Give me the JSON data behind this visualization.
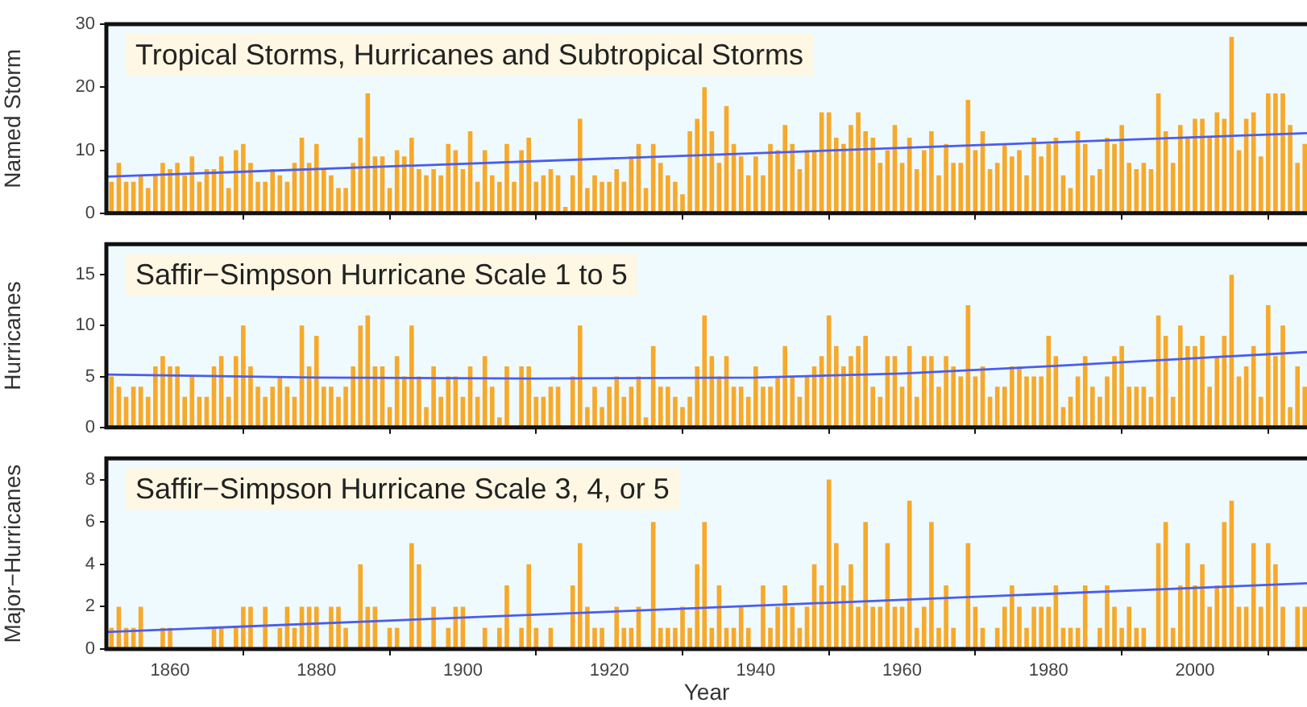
{
  "chart_data": [
    {
      "type": "bar",
      "title": "Tropical Storms, Hurricanes and Subtropical Storms",
      "ylabel": "Named Storm",
      "x": [
        1852,
        1853,
        1854,
        1855,
        1856,
        1857,
        1858,
        1859,
        1860,
        1861,
        1862,
        1863,
        1864,
        1865,
        1866,
        1867,
        1868,
        1869,
        1870,
        1871,
        1872,
        1873,
        1874,
        1875,
        1876,
        1877,
        1878,
        1879,
        1880,
        1881,
        1882,
        1883,
        1884,
        1885,
        1886,
        1887,
        1888,
        1889,
        1890,
        1891,
        1892,
        1893,
        1894,
        1895,
        1896,
        1897,
        1898,
        1899,
        1900,
        1901,
        1902,
        1903,
        1904,
        1905,
        1906,
        1907,
        1908,
        1909,
        1910,
        1911,
        1912,
        1913,
        1914,
        1915,
        1916,
        1917,
        1918,
        1919,
        1920,
        1921,
        1922,
        1923,
        1924,
        1925,
        1926,
        1927,
        1928,
        1929,
        1930,
        1931,
        1932,
        1933,
        1934,
        1935,
        1936,
        1937,
        1938,
        1939,
        1940,
        1941,
        1942,
        1943,
        1944,
        1945,
        1946,
        1947,
        1948,
        1949,
        1950,
        1951,
        1952,
        1953,
        1954,
        1955,
        1956,
        1957,
        1958,
        1959,
        1960,
        1961,
        1962,
        1963,
        1964,
        1965,
        1966,
        1967,
        1968,
        1969,
        1970,
        1971,
        1972,
        1973,
        1974,
        1975,
        1976,
        1977,
        1978,
        1979,
        1980,
        1981,
        1982,
        1983,
        1984,
        1985,
        1986,
        1987,
        1988,
        1989,
        1990,
        1991,
        1992,
        1993,
        1994,
        1995,
        1996,
        1997,
        1998,
        1999,
        2000,
        2001,
        2002,
        2003,
        2004,
        2005,
        2006,
        2007,
        2008,
        2009,
        2010,
        2011,
        2012,
        2013,
        2014,
        2015
      ],
      "series": [
        {
          "color": "#f7a92a",
          "values": [
            5,
            8,
            5,
            5,
            6,
            4,
            6,
            8,
            7,
            8,
            6,
            9,
            5,
            7,
            7,
            9,
            4,
            10,
            11,
            8,
            5,
            5,
            7,
            6,
            5,
            8,
            12,
            8,
            11,
            7,
            6,
            4,
            4,
            8,
            12,
            19,
            9,
            9,
            4,
            10,
            9,
            12,
            7,
            6,
            7,
            6,
            11,
            10,
            7,
            13,
            5,
            10,
            6,
            5,
            11,
            5,
            10,
            12,
            5,
            6,
            7,
            6,
            1,
            6,
            15,
            4,
            6,
            5,
            5,
            7,
            5,
            9,
            11,
            4,
            11,
            8,
            6,
            5,
            3,
            13,
            15,
            20,
            13,
            8,
            17,
            11,
            9,
            6,
            9,
            6,
            11,
            10,
            14,
            11,
            7,
            10,
            10,
            16,
            16,
            12,
            11,
            14,
            16,
            13,
            12,
            8,
            10,
            14,
            8,
            12,
            7,
            10,
            13,
            6,
            11,
            8,
            8,
            18,
            10,
            13,
            7,
            8,
            11,
            9,
            10,
            6,
            12,
            9,
            11,
            12,
            6,
            4,
            13,
            11,
            6,
            7,
            12,
            11,
            14,
            8,
            7,
            8,
            7,
            19,
            13,
            8,
            14,
            12,
            15,
            15,
            12,
            16,
            15,
            28,
            10,
            15,
            16,
            9,
            19,
            19,
            19,
            14,
            8,
            11
          ]
        },
        {
          "type": "line",
          "color": "#4a5cf0",
          "x": [
            1851.3,
            2015.3
          ],
          "values": [
            5.8,
            12.7
          ]
        }
      ],
      "xlim": [
        1851.3,
        2015.3
      ],
      "xticks": [
        1860,
        1880,
        1900,
        1920,
        1940,
        1960,
        1980,
        2000
      ],
      "ylim": [
        0,
        30
      ],
      "yticks": [
        0,
        10,
        20,
        30
      ],
      "tick_labels": "y"
    },
    {
      "type": "bar",
      "title": "Saffir−Simpson Hurricane Scale 1 to 5",
      "ylabel": "Hurricanes",
      "x": [
        1852,
        1853,
        1854,
        1855,
        1856,
        1857,
        1858,
        1859,
        1860,
        1861,
        1862,
        1863,
        1864,
        1865,
        1866,
        1867,
        1868,
        1869,
        1870,
        1871,
        1872,
        1873,
        1874,
        1875,
        1876,
        1877,
        1878,
        1879,
        1880,
        1881,
        1882,
        1883,
        1884,
        1885,
        1886,
        1887,
        1888,
        1889,
        1890,
        1891,
        1892,
        1893,
        1894,
        1895,
        1896,
        1897,
        1898,
        1899,
        1900,
        1901,
        1902,
        1903,
        1904,
        1905,
        1906,
        1907,
        1908,
        1909,
        1910,
        1911,
        1912,
        1913,
        1914,
        1915,
        1916,
        1917,
        1918,
        1919,
        1920,
        1921,
        1922,
        1923,
        1924,
        1925,
        1926,
        1927,
        1928,
        1929,
        1930,
        1931,
        1932,
        1933,
        1934,
        1935,
        1936,
        1937,
        1938,
        1939,
        1940,
        1941,
        1942,
        1943,
        1944,
        1945,
        1946,
        1947,
        1948,
        1949,
        1950,
        1951,
        1952,
        1953,
        1954,
        1955,
        1956,
        1957,
        1958,
        1959,
        1960,
        1961,
        1962,
        1963,
        1964,
        1965,
        1966,
        1967,
        1968,
        1969,
        1970,
        1971,
        1972,
        1973,
        1974,
        1975,
        1976,
        1977,
        1978,
        1979,
        1980,
        1981,
        1982,
        1983,
        1984,
        1985,
        1986,
        1987,
        1988,
        1989,
        1990,
        1991,
        1992,
        1993,
        1994,
        1995,
        1996,
        1997,
        1998,
        1999,
        2000,
        2001,
        2002,
        2003,
        2004,
        2005,
        2006,
        2007,
        2008,
        2009,
        2010,
        2011,
        2012,
        2013,
        2014,
        2015
      ],
      "series": [
        {
          "color": "#f7a92a",
          "values": [
            5,
            4,
            3,
            4,
            4,
            3,
            6,
            7,
            6,
            6,
            3,
            5,
            3,
            3,
            6,
            7,
            3,
            7,
            10,
            6,
            4,
            3,
            4,
            5,
            4,
            3,
            10,
            6,
            9,
            4,
            4,
            3,
            4,
            6,
            10,
            11,
            6,
            6,
            2,
            7,
            5,
            10,
            5,
            2,
            6,
            3,
            5,
            5,
            3,
            6,
            3,
            7,
            4,
            1,
            6,
            0,
            6,
            6,
            3,
            3,
            4,
            4,
            0,
            5,
            10,
            2,
            4,
            2,
            4,
            5,
            3,
            4,
            5,
            1,
            8,
            4,
            4,
            3,
            2,
            3,
            6,
            11,
            7,
            5,
            7,
            4,
            4,
            3,
            6,
            4,
            4,
            5,
            8,
            5,
            3,
            5,
            6,
            7,
            11,
            8,
            6,
            7,
            8,
            9,
            4,
            3,
            7,
            7,
            4,
            8,
            3,
            7,
            7,
            4,
            7,
            6,
            5,
            12,
            5,
            6,
            3,
            4,
            4,
            6,
            6,
            5,
            5,
            5,
            9,
            7,
            2,
            3,
            5,
            7,
            4,
            3,
            5,
            7,
            8,
            4,
            4,
            4,
            3,
            11,
            9,
            3,
            10,
            8,
            8,
            9,
            4,
            7,
            9,
            15,
            5,
            6,
            8,
            3,
            12,
            7,
            10,
            2,
            6,
            4
          ]
        },
        {
          "type": "line",
          "color": "#4a5cf0",
          "x": [
            1851.3,
            1880,
            1910,
            1940,
            1960,
            1980,
            2000,
            2015.3
          ],
          "values": [
            5.2,
            4.9,
            4.8,
            4.9,
            5.3,
            6.0,
            6.8,
            7.4
          ]
        }
      ],
      "xlim": [
        1851.3,
        2015.3
      ],
      "xticks": [
        1860,
        1880,
        1900,
        1920,
        1940,
        1960,
        1980,
        2000
      ],
      "ylim": [
        0,
        18
      ],
      "yticks": [
        0,
        5,
        10,
        15
      ],
      "tick_labels": "y"
    },
    {
      "type": "bar",
      "title": "Saffir−Simpson Hurricane Scale 3, 4, or 5",
      "ylabel": "Major−Hurricanes",
      "xlabel": "Year",
      "x": [
        1852,
        1853,
        1854,
        1855,
        1856,
        1857,
        1858,
        1859,
        1860,
        1861,
        1862,
        1863,
        1864,
        1865,
        1866,
        1867,
        1868,
        1869,
        1870,
        1871,
        1872,
        1873,
        1874,
        1875,
        1876,
        1877,
        1878,
        1879,
        1880,
        1881,
        1882,
        1883,
        1884,
        1885,
        1886,
        1887,
        1888,
        1889,
        1890,
        1891,
        1892,
        1893,
        1894,
        1895,
        1896,
        1897,
        1898,
        1899,
        1900,
        1901,
        1902,
        1903,
        1904,
        1905,
        1906,
        1907,
        1908,
        1909,
        1910,
        1911,
        1912,
        1913,
        1914,
        1915,
        1916,
        1917,
        1918,
        1919,
        1920,
        1921,
        1922,
        1923,
        1924,
        1925,
        1926,
        1927,
        1928,
        1929,
        1930,
        1931,
        1932,
        1933,
        1934,
        1935,
        1936,
        1937,
        1938,
        1939,
        1940,
        1941,
        1942,
        1943,
        1944,
        1945,
        1946,
        1947,
        1948,
        1949,
        1950,
        1951,
        1952,
        1953,
        1954,
        1955,
        1956,
        1957,
        1958,
        1959,
        1960,
        1961,
        1962,
        1963,
        1964,
        1965,
        1966,
        1967,
        1968,
        1969,
        1970,
        1971,
        1972,
        1973,
        1974,
        1975,
        1976,
        1977,
        1978,
        1979,
        1980,
        1981,
        1982,
        1983,
        1984,
        1985,
        1986,
        1987,
        1988,
        1989,
        1990,
        1991,
        1992,
        1993,
        1994,
        1995,
        1996,
        1997,
        1998,
        1999,
        2000,
        2001,
        2002,
        2003,
        2004,
        2005,
        2006,
        2007,
        2008,
        2009,
        2010,
        2011,
        2012,
        2013,
        2014,
        2015
      ],
      "series": [
        {
          "color": "#f7a92a",
          "values": [
            1,
            2,
            1,
            1,
            2,
            0,
            0,
            1,
            1,
            0,
            0,
            0,
            0,
            0,
            1,
            1,
            0,
            1,
            2,
            2,
            0,
            2,
            0,
            1,
            2,
            1,
            2,
            2,
            2,
            0,
            2,
            2,
            1,
            0,
            4,
            2,
            2,
            0,
            1,
            1,
            0,
            5,
            4,
            0,
            2,
            0,
            1,
            2,
            2,
            0,
            0,
            1,
            0,
            1,
            3,
            0,
            1,
            4,
            1,
            0,
            1,
            0,
            0,
            3,
            5,
            2,
            1,
            1,
            0,
            2,
            1,
            1,
            2,
            0,
            6,
            1,
            1,
            1,
            2,
            1,
            4,
            6,
            1,
            3,
            1,
            1,
            2,
            1,
            0,
            3,
            1,
            2,
            3,
            2,
            1,
            2,
            4,
            3,
            8,
            5,
            3,
            4,
            2,
            6,
            2,
            2,
            5,
            2,
            2,
            7,
            1,
            2,
            6,
            1,
            3,
            1,
            0,
            5,
            2,
            1,
            0,
            1,
            2,
            3,
            2,
            1,
            2,
            2,
            2,
            3,
            1,
            1,
            1,
            3,
            0,
            1,
            3,
            2,
            1,
            2,
            1,
            1,
            0,
            5,
            6,
            1,
            3,
            5,
            3,
            4,
            2,
            3,
            6,
            7,
            2,
            2,
            5,
            2,
            5,
            4,
            2,
            0,
            2,
            2
          ]
        },
        {
          "type": "line",
          "color": "#4a5cf0",
          "x": [
            1851.3,
            2015.3
          ],
          "values": [
            0.8,
            3.1
          ]
        }
      ],
      "xlim": [
        1851.3,
        2015.3
      ],
      "xticks": [
        1860,
        1880,
        1900,
        1920,
        1940,
        1960,
        1980,
        2000
      ],
      "ylim": [
        0,
        9
      ],
      "yticks": [
        0,
        2,
        4,
        6,
        8
      ]
    }
  ]
}
